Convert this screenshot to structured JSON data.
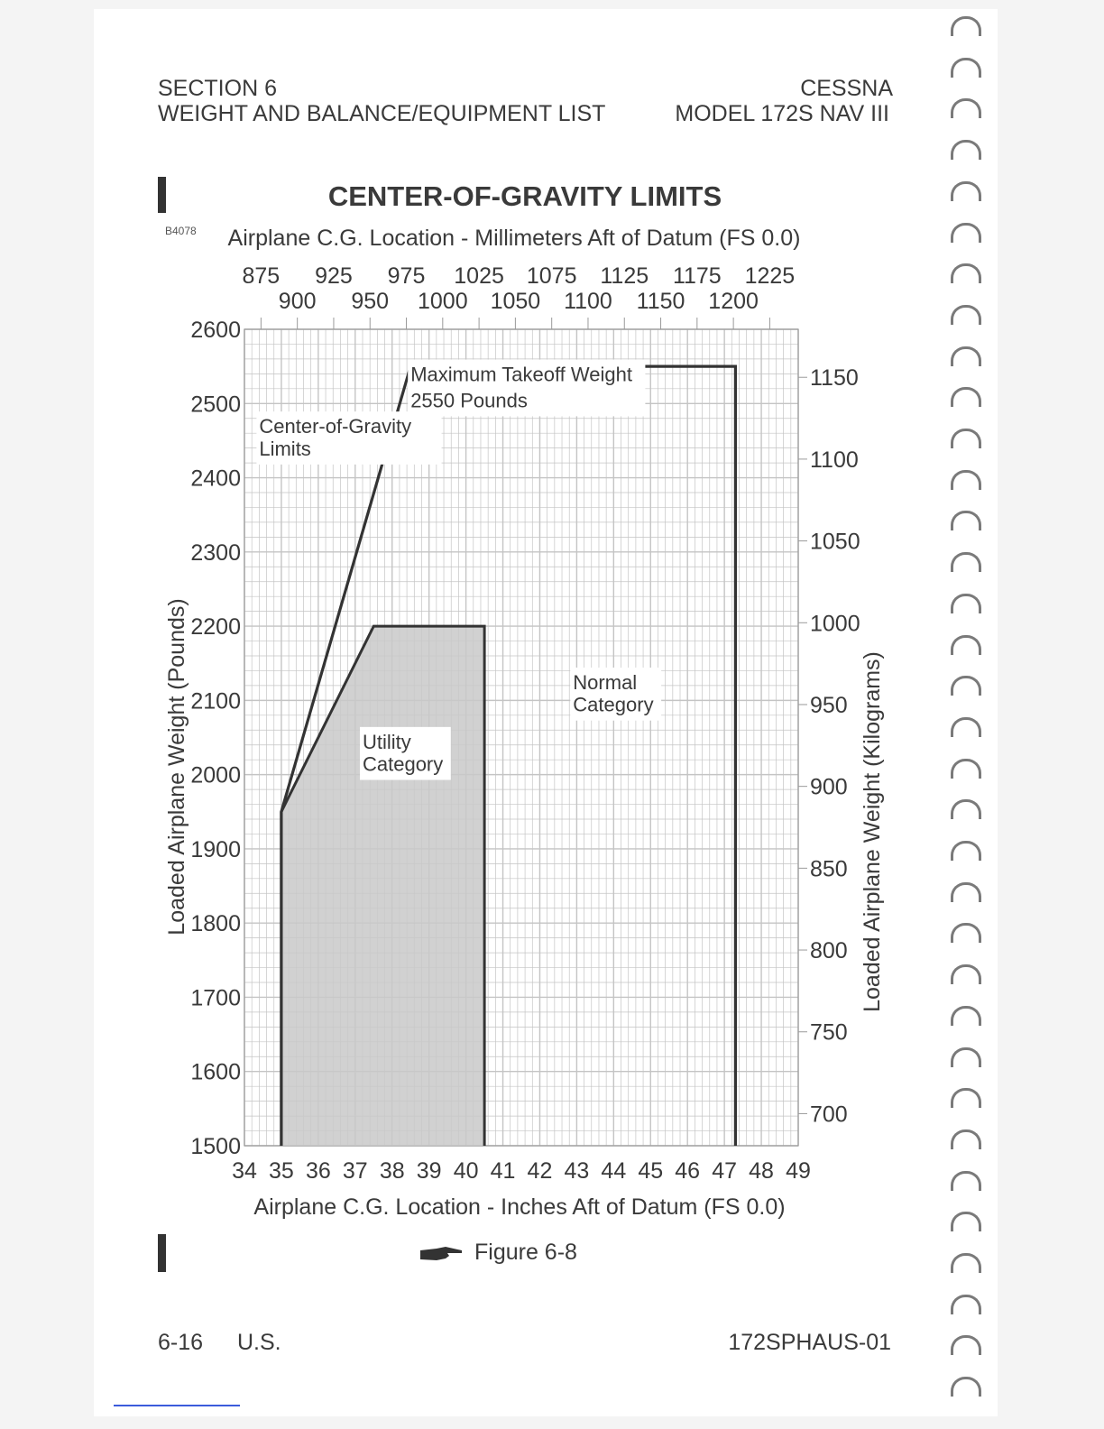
{
  "header": {
    "section": "SECTION 6",
    "section_title": "WEIGHT AND BALANCE/EQUIPMENT LIST",
    "manufacturer": "CESSNA",
    "model": "MODEL 172S NAV III"
  },
  "figure": {
    "code": "B4078",
    "caption": "Figure 6-8"
  },
  "footer": {
    "page_number": "6-16",
    "region": "U.S.",
    "doc_id": "172SPHAUS-01"
  },
  "colors": {
    "envelope_line": "#333333",
    "utility_fill": "#c9c9c9",
    "grid": "#c4c4c4",
    "text": "#3a3a3a"
  },
  "chart_data": {
    "type": "area",
    "title": "CENTER-OF-GRAVITY LIMITS",
    "xlabel": "Airplane C.G. Location - Inches Aft of Datum (FS 0.0)",
    "ylabel": "Loaded Airplane Weight (Pounds)",
    "x2label": "Airplane C.G. Location - Millimeters Aft of Datum (FS 0.0)",
    "y2label": "Loaded Airplane Weight (Kilograms)",
    "xlim": [
      34,
      49
    ],
    "ylim": [
      1500,
      2600
    ],
    "x_ticks": [
      34,
      35,
      36,
      37,
      38,
      39,
      40,
      41,
      42,
      43,
      44,
      45,
      46,
      47,
      48,
      49
    ],
    "y_ticks": [
      1500,
      1600,
      1700,
      1800,
      1900,
      2000,
      2100,
      2200,
      2300,
      2400,
      2500,
      2600
    ],
    "mm_ticks_top_row": [
      875,
      925,
      975,
      1025,
      1075,
      1125,
      1175,
      1225
    ],
    "mm_ticks_bottom_row": [
      900,
      950,
      1000,
      1050,
      1100,
      1150,
      1200
    ],
    "kg_ticks": [
      700,
      750,
      800,
      850,
      900,
      950,
      1000,
      1050,
      1100,
      1150
    ],
    "grid": true,
    "series": [
      {
        "name": "Normal Category",
        "points": [
          [
            35.0,
            1500
          ],
          [
            35.0,
            1950
          ],
          [
            38.5,
            2550
          ],
          [
            47.3,
            2550
          ],
          [
            47.3,
            1500
          ]
        ]
      },
      {
        "name": "Utility Category",
        "points": [
          [
            35.0,
            1500
          ],
          [
            35.0,
            1950
          ],
          [
            37.5,
            2200
          ],
          [
            40.5,
            2200
          ],
          [
            40.5,
            1500
          ]
        ]
      }
    ],
    "annotations": [
      {
        "text": "Maximum Takeoff Weight",
        "x": 38.5,
        "y": 2530
      },
      {
        "text": "2550 Pounds",
        "x": 38.5,
        "y": 2495
      },
      {
        "text": "Center-of-Gravity",
        "x": 34.4,
        "y": 2460
      },
      {
        "text": "Limits",
        "x": 34.4,
        "y": 2430
      },
      {
        "text": "Normal",
        "x": 42.9,
        "y": 2115
      },
      {
        "text": "Category",
        "x": 42.9,
        "y": 2085
      },
      {
        "text": "Utility",
        "x": 37.2,
        "y": 2035
      },
      {
        "text": "Category",
        "x": 37.2,
        "y": 2005
      }
    ]
  }
}
